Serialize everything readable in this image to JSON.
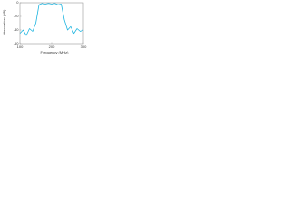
{
  "chart_data": {
    "type": "line",
    "x_label": "Frequency (MHz)",
    "y_label": "Attenuation (dB)",
    "x": [
      100,
      110,
      120,
      130,
      140,
      150,
      160,
      170,
      180,
      190,
      200,
      210,
      220,
      230,
      240,
      250,
      260,
      270,
      280,
      290,
      300
    ],
    "series": [
      {
        "color": "#1fb5e0",
        "values": [
          -45,
          -40,
          -48,
          -38,
          -42,
          -30,
          -3,
          -1,
          -2,
          -1,
          -2,
          -1,
          -3,
          -2,
          -25,
          -40,
          -35,
          -45,
          -38,
          -42,
          -40
        ]
      }
    ],
    "xlim": [
      100,
      300
    ],
    "xticks": [
      100,
      200,
      300
    ],
    "ylim": [
      -60,
      0
    ],
    "yticks": [
      -60,
      -40,
      -20,
      0
    ],
    "grid": false
  }
}
